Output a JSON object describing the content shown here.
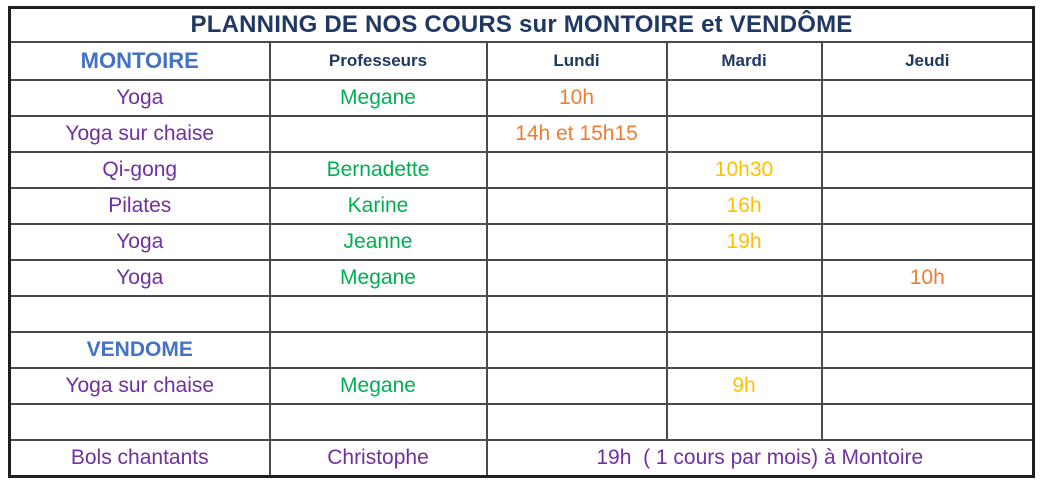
{
  "title": "PLANNING DE NOS COURS sur MONTOIRE et VENDÔME",
  "colors": {
    "title_navy": "#1f3864",
    "header_navy": "#1f3864",
    "location_blue": "#4472c4",
    "course_purple": "#7030a0",
    "teacher_green": "#00b050",
    "time_orange": "#ed7d31",
    "time_gold": "#ffc000",
    "grid_line": "#4a4a4a",
    "outer_border": "#1f1f1f"
  },
  "table": {
    "columns": [
      {
        "key": "course",
        "header": "MONTOIRE",
        "header_style": "location"
      },
      {
        "key": "professeurs",
        "header": "Professeurs",
        "header_style": "day"
      },
      {
        "key": "lundi",
        "header": "Lundi",
        "header_style": "day"
      },
      {
        "key": "mardi",
        "header": "Mardi",
        "header_style": "day"
      },
      {
        "key": "jeudi",
        "header": "Jeudi",
        "header_style": "day"
      }
    ],
    "rows": [
      {
        "name": "row-montoire-yoga-megane",
        "cells": [
          {
            "text": "Yoga",
            "color": "course_purple"
          },
          {
            "text": "Megane",
            "color": "teacher_green"
          },
          {
            "text": "10h",
            "color": "time_orange"
          },
          {
            "text": ""
          },
          {
            "text": ""
          }
        ]
      },
      {
        "name": "row-montoire-yoga-sur-chaise",
        "cells": [
          {
            "text": "Yoga sur chaise",
            "color": "course_purple"
          },
          {
            "text": ""
          },
          {
            "text": "14h et 15h15",
            "color": "time_orange"
          },
          {
            "text": ""
          },
          {
            "text": ""
          }
        ]
      },
      {
        "name": "row-montoire-qi-gong",
        "cells": [
          {
            "text": "Qi-gong",
            "color": "course_purple"
          },
          {
            "text": "Bernadette",
            "color": "teacher_green"
          },
          {
            "text": ""
          },
          {
            "text": "10h30",
            "color": "time_gold"
          },
          {
            "text": ""
          }
        ]
      },
      {
        "name": "row-montoire-pilates",
        "cells": [
          {
            "text": "Pilates",
            "color": "course_purple"
          },
          {
            "text": "Karine",
            "color": "teacher_green"
          },
          {
            "text": ""
          },
          {
            "text": "16h",
            "color": "time_gold"
          },
          {
            "text": ""
          }
        ]
      },
      {
        "name": "row-montoire-yoga-jeanne",
        "cells": [
          {
            "text": "Yoga",
            "color": "course_purple"
          },
          {
            "text": "Jeanne",
            "color": "teacher_green"
          },
          {
            "text": ""
          },
          {
            "text": "19h",
            "color": "time_gold"
          },
          {
            "text": ""
          }
        ]
      },
      {
        "name": "row-montoire-yoga-megane-jeudi",
        "cells": [
          {
            "text": "Yoga",
            "color": "course_purple"
          },
          {
            "text": "Megane",
            "color": "teacher_green"
          },
          {
            "text": ""
          },
          {
            "text": ""
          },
          {
            "text": "10h",
            "color": "time_orange"
          }
        ]
      },
      {
        "name": "row-empty-1",
        "cells": [
          {
            "text": ""
          },
          {
            "text": ""
          },
          {
            "text": ""
          },
          {
            "text": ""
          },
          {
            "text": ""
          }
        ]
      },
      {
        "name": "row-vendome-header",
        "cells": [
          {
            "text": "VENDOME",
            "color": "location_blue"
          },
          {
            "text": ""
          },
          {
            "text": ""
          },
          {
            "text": ""
          },
          {
            "text": ""
          }
        ]
      },
      {
        "name": "row-vendome-yoga-sur-chaise",
        "cells": [
          {
            "text": "Yoga sur chaise",
            "color": "course_purple"
          },
          {
            "text": "Megane",
            "color": "teacher_green"
          },
          {
            "text": ""
          },
          {
            "text": "9h",
            "color": "time_gold"
          },
          {
            "text": ""
          }
        ]
      },
      {
        "name": "row-empty-2",
        "cells": [
          {
            "text": ""
          },
          {
            "text": ""
          },
          {
            "text": ""
          },
          {
            "text": ""
          },
          {
            "text": ""
          }
        ]
      },
      {
        "name": "row-bols-chantants",
        "cells": [
          {
            "text": "Bols chantants",
            "color": "course_purple"
          },
          {
            "text": "Christophe",
            "color": "course_purple"
          },
          {
            "text": "19h  ( 1 cours par mois) à Montoire",
            "color": "course_purple",
            "colspan": 3
          }
        ]
      }
    ]
  }
}
